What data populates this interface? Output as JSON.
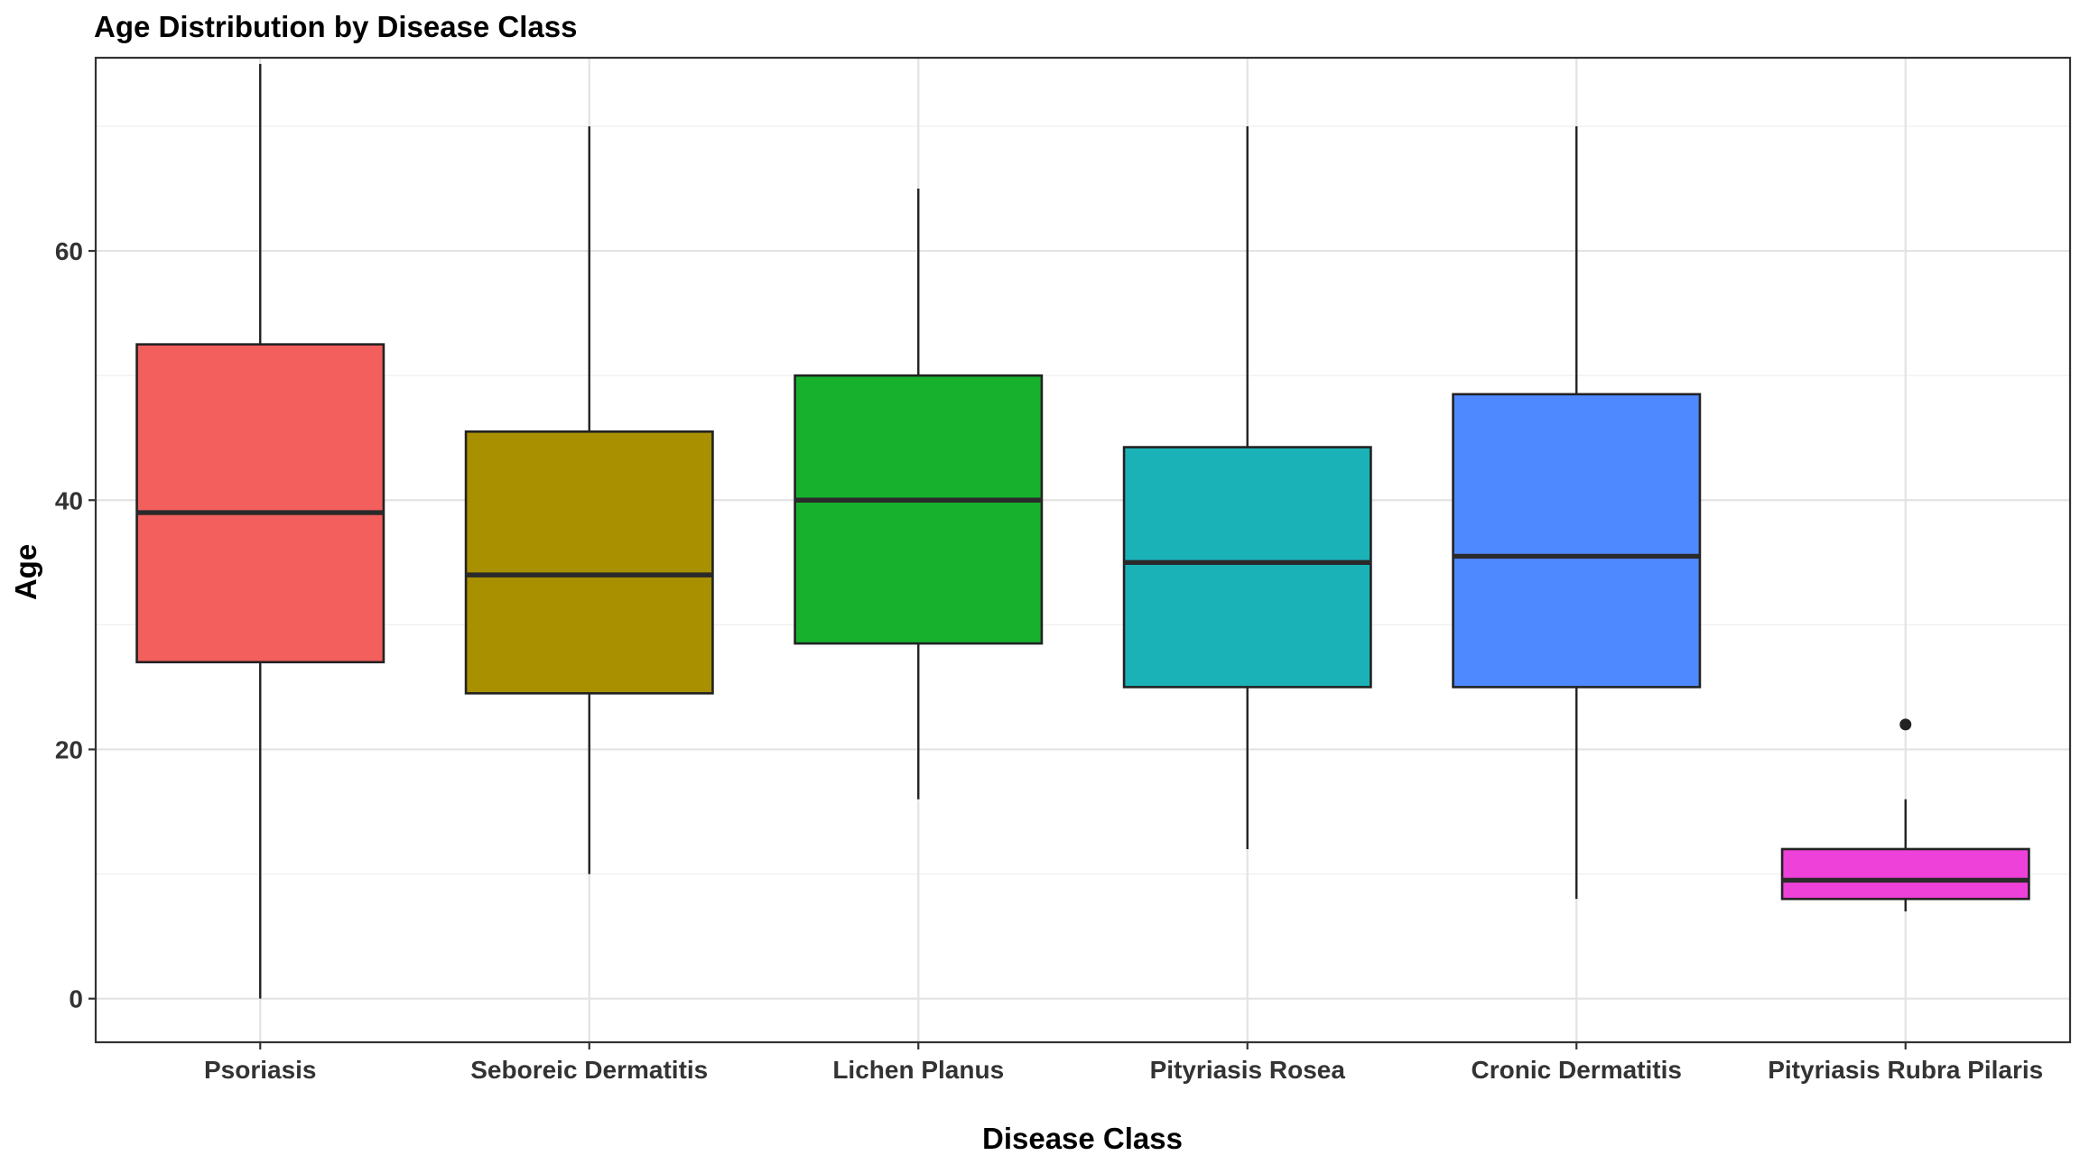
{
  "chart_data": {
    "type": "box",
    "title": "Age Distribution by Disease Class",
    "xlabel": "Disease Class",
    "ylabel": "Age",
    "ylim": [
      -3.5,
      75.5
    ],
    "yticks": [
      0,
      20,
      40,
      60
    ],
    "grid": true,
    "legend": "none",
    "categories": [
      "Psoriasis",
      "Seboreic Dermatitis",
      "Lichen Planus",
      "Pityriasis Rosea",
      "Cronic Dermatitis",
      "Pityriasis Rubra Pilaris"
    ],
    "colors": [
      "#F25F5C",
      "#A89000",
      "#17B12E",
      "#1AB2B7",
      "#4F89FF",
      "#EE41D9"
    ],
    "boxes": [
      {
        "whisker_low": 0,
        "q1": 27,
        "median": 39,
        "q3": 52.5,
        "whisker_high": 75,
        "outliers": []
      },
      {
        "whisker_low": 10,
        "q1": 24.5,
        "median": 34,
        "q3": 45.5,
        "whisker_high": 70,
        "outliers": []
      },
      {
        "whisker_low": 16,
        "q1": 28.5,
        "median": 40,
        "q3": 50,
        "whisker_high": 65,
        "outliers": []
      },
      {
        "whisker_low": 12,
        "q1": 25,
        "median": 35,
        "q3": 44.25,
        "whisker_high": 70,
        "outliers": []
      },
      {
        "whisker_low": 8,
        "q1": 25,
        "median": 35.5,
        "q3": 48.5,
        "whisker_high": 70,
        "outliers": []
      },
      {
        "whisker_low": 7,
        "q1": 8,
        "median": 9.5,
        "q3": 12,
        "whisker_high": 16,
        "outliers": [
          22
        ]
      }
    ]
  }
}
